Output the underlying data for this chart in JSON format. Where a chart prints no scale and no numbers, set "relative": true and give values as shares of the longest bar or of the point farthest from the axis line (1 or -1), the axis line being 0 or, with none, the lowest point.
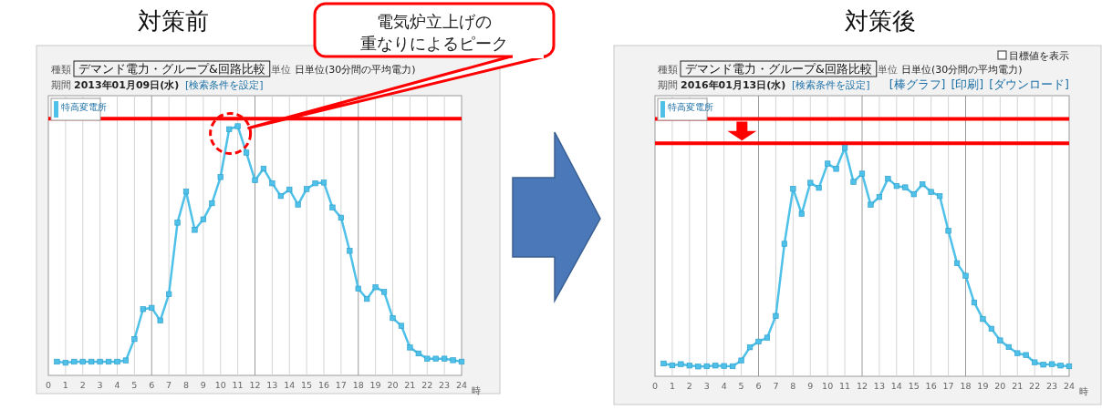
{
  "chart_data": [
    {
      "type": "line",
      "title": "対策前",
      "relative": true,
      "xlabel": "時",
      "xlim": [
        0,
        24
      ],
      "xticks": [
        0,
        1,
        2,
        3,
        4,
        5,
        6,
        7,
        8,
        9,
        10,
        11,
        12,
        13,
        14,
        15,
        16,
        17,
        18,
        19,
        20,
        21,
        22,
        23,
        24
      ],
      "grid": "x",
      "legend": "top left",
      "marker": "square",
      "x": [
        0.5,
        1,
        1.5,
        2,
        2.5,
        3,
        3.5,
        4,
        4.5,
        5,
        5.5,
        6,
        6.5,
        7,
        7.5,
        8,
        8.5,
        9,
        9.5,
        10,
        10.5,
        11,
        11.5,
        12,
        12.5,
        13,
        13.5,
        14,
        14.5,
        15,
        15.5,
        16,
        16.5,
        17,
        17.5,
        18,
        18.5,
        19,
        19.5,
        20,
        20.5,
        21,
        21.5,
        22,
        22.5,
        23,
        23.5,
        24
      ],
      "series": [
        {
          "name": "特高変電所",
          "color": "#4fc1e9",
          "values": [
            0.055,
            0.051,
            0.055,
            0.055,
            0.055,
            0.055,
            0.055,
            0.055,
            0.06,
            0.146,
            0.266,
            0.271,
            0.22,
            0.326,
            0.613,
            0.738,
            0.584,
            0.626,
            0.691,
            0.796,
            0.988,
            1,
            0.894,
            0.783,
            0.83,
            0.771,
            0.72,
            0.746,
            0.685,
            0.748,
            0.771,
            0.774,
            0.674,
            0.633,
            0.5,
            0.348,
            0.307,
            0.354,
            0.335,
            0.23,
            0.199,
            0.112,
            0.088,
            0.067,
            0.067,
            0.067,
            0.061,
            0.055
          ]
        }
      ],
      "ref_lines": [
        {
          "axis": "y",
          "value": 1.03,
          "color": "#ff0000"
        }
      ],
      "annotations": [
        "種類",
        "デマンド電力・グループ&回路比較",
        "単位",
        "日単位(30分間の平均電力)",
        "期間",
        "2013年01月09日(水)",
        "[検索条件を設定]",
        "電気炉立上げの",
        "重なりによるピーク"
      ]
    },
    {
      "type": "line",
      "title": "対策後",
      "relative": true,
      "xlabel": "時",
      "xlim": [
        0,
        24
      ],
      "xticks": [
        0,
        1,
        2,
        3,
        4,
        5,
        6,
        7,
        8,
        9,
        10,
        11,
        12,
        13,
        14,
        15,
        16,
        17,
        18,
        19,
        20,
        21,
        22,
        23,
        24
      ],
      "grid": "x",
      "legend": "top left",
      "marker": "square",
      "x": [
        0.5,
        1,
        1.5,
        2,
        2.5,
        3,
        3.5,
        4,
        4.5,
        5,
        5.5,
        6,
        6.5,
        7,
        7.5,
        8,
        8.5,
        9,
        9.5,
        10,
        10.5,
        11,
        11.5,
        12,
        12.5,
        13,
        13.5,
        14,
        14.5,
        15,
        15.5,
        16,
        16.5,
        17,
        17.5,
        18,
        18.5,
        19,
        19.5,
        20,
        20.5,
        21,
        21.5,
        22,
        22.5,
        23,
        23.5,
        24
      ],
      "series": [
        {
          "name": "特高変電所",
          "color": "#4fc1e9",
          "values": [
            0.056,
            0.048,
            0.053,
            0.047,
            0.043,
            0.044,
            0.047,
            0.045,
            0.044,
            0.069,
            0.127,
            0.152,
            0.169,
            0.264,
            0.58,
            0.821,
            0.711,
            0.847,
            0.825,
            0.931,
            0.908,
            1,
            0.851,
            0.887,
            0.751,
            0.785,
            0.865,
            0.833,
            0.827,
            0.797,
            0.841,
            0.807,
            0.789,
            0.637,
            0.495,
            0.44,
            0.323,
            0.251,
            0.208,
            0.157,
            0.128,
            0.101,
            0.093,
            0.061,
            0.051,
            0.053,
            0.047,
            0.044
          ]
        }
      ],
      "ref_lines": [
        {
          "axis": "y",
          "value": 1.127,
          "color": "#ff0000"
        },
        {
          "axis": "y",
          "value": 1.02,
          "color": "#ff0000"
        }
      ],
      "annotations": [
        "種類",
        "デマンド電力・グループ&回路比較",
        "単位",
        "日単位(30分間の平均電力)",
        "期間",
        "2016年01月13日(水)",
        "[検索条件を設定]",
        "目標値を表示",
        "[棒グラフ]",
        "[印刷]",
        "[ダウンロード]"
      ]
    }
  ]
}
